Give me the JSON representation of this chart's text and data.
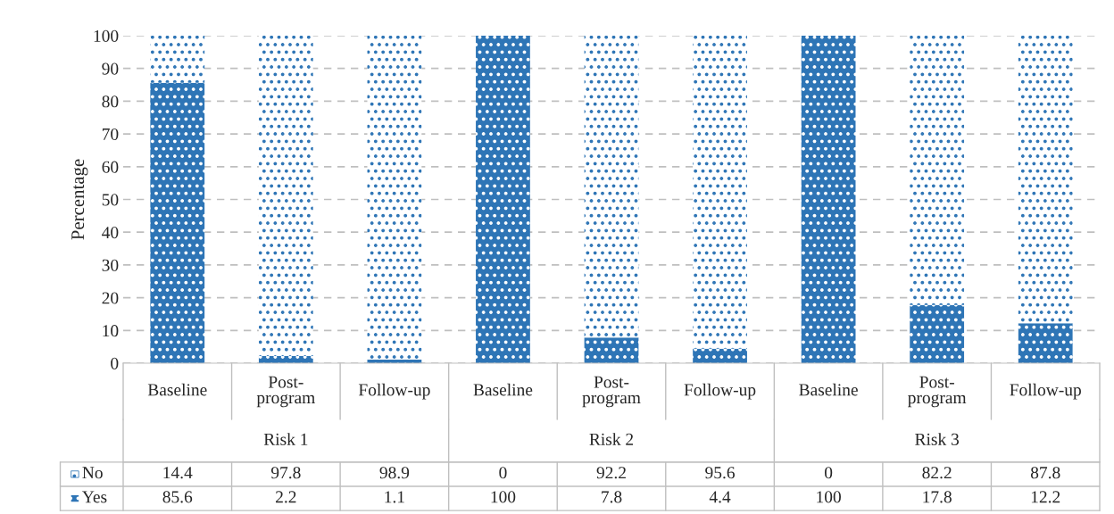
{
  "chart_data": {
    "type": "bar",
    "stacked": true,
    "ylabel": "Percentage",
    "categories": [
      "Baseline",
      "Post-program",
      "Follow-up",
      "Baseline",
      "Post-program",
      "Follow-up",
      "Baseline",
      "Post-program",
      "Follow-up"
    ],
    "series": [
      {
        "name": "Yes",
        "color": "#2e75b6",
        "values": [
          85.6,
          2.2,
          1.1,
          100,
          7.8,
          4.4,
          100,
          17.8,
          12.2
        ]
      },
      {
        "name": "No",
        "color": "#ffffff",
        "values": [
          14.4,
          97.8,
          98.9,
          0,
          92.2,
          95.6,
          0,
          82.2,
          87.8
        ]
      }
    ],
    "annotations": [
      "Risk 1",
      "Risk 2",
      "Risk 3"
    ],
    "ylim": [
      0,
      100
    ],
    "yticks": [
      0,
      10,
      20,
      30,
      40,
      50,
      60,
      70,
      80,
      90,
      100
    ],
    "grid": "y",
    "legend": "bottom",
    "data_labels": true
  }
}
